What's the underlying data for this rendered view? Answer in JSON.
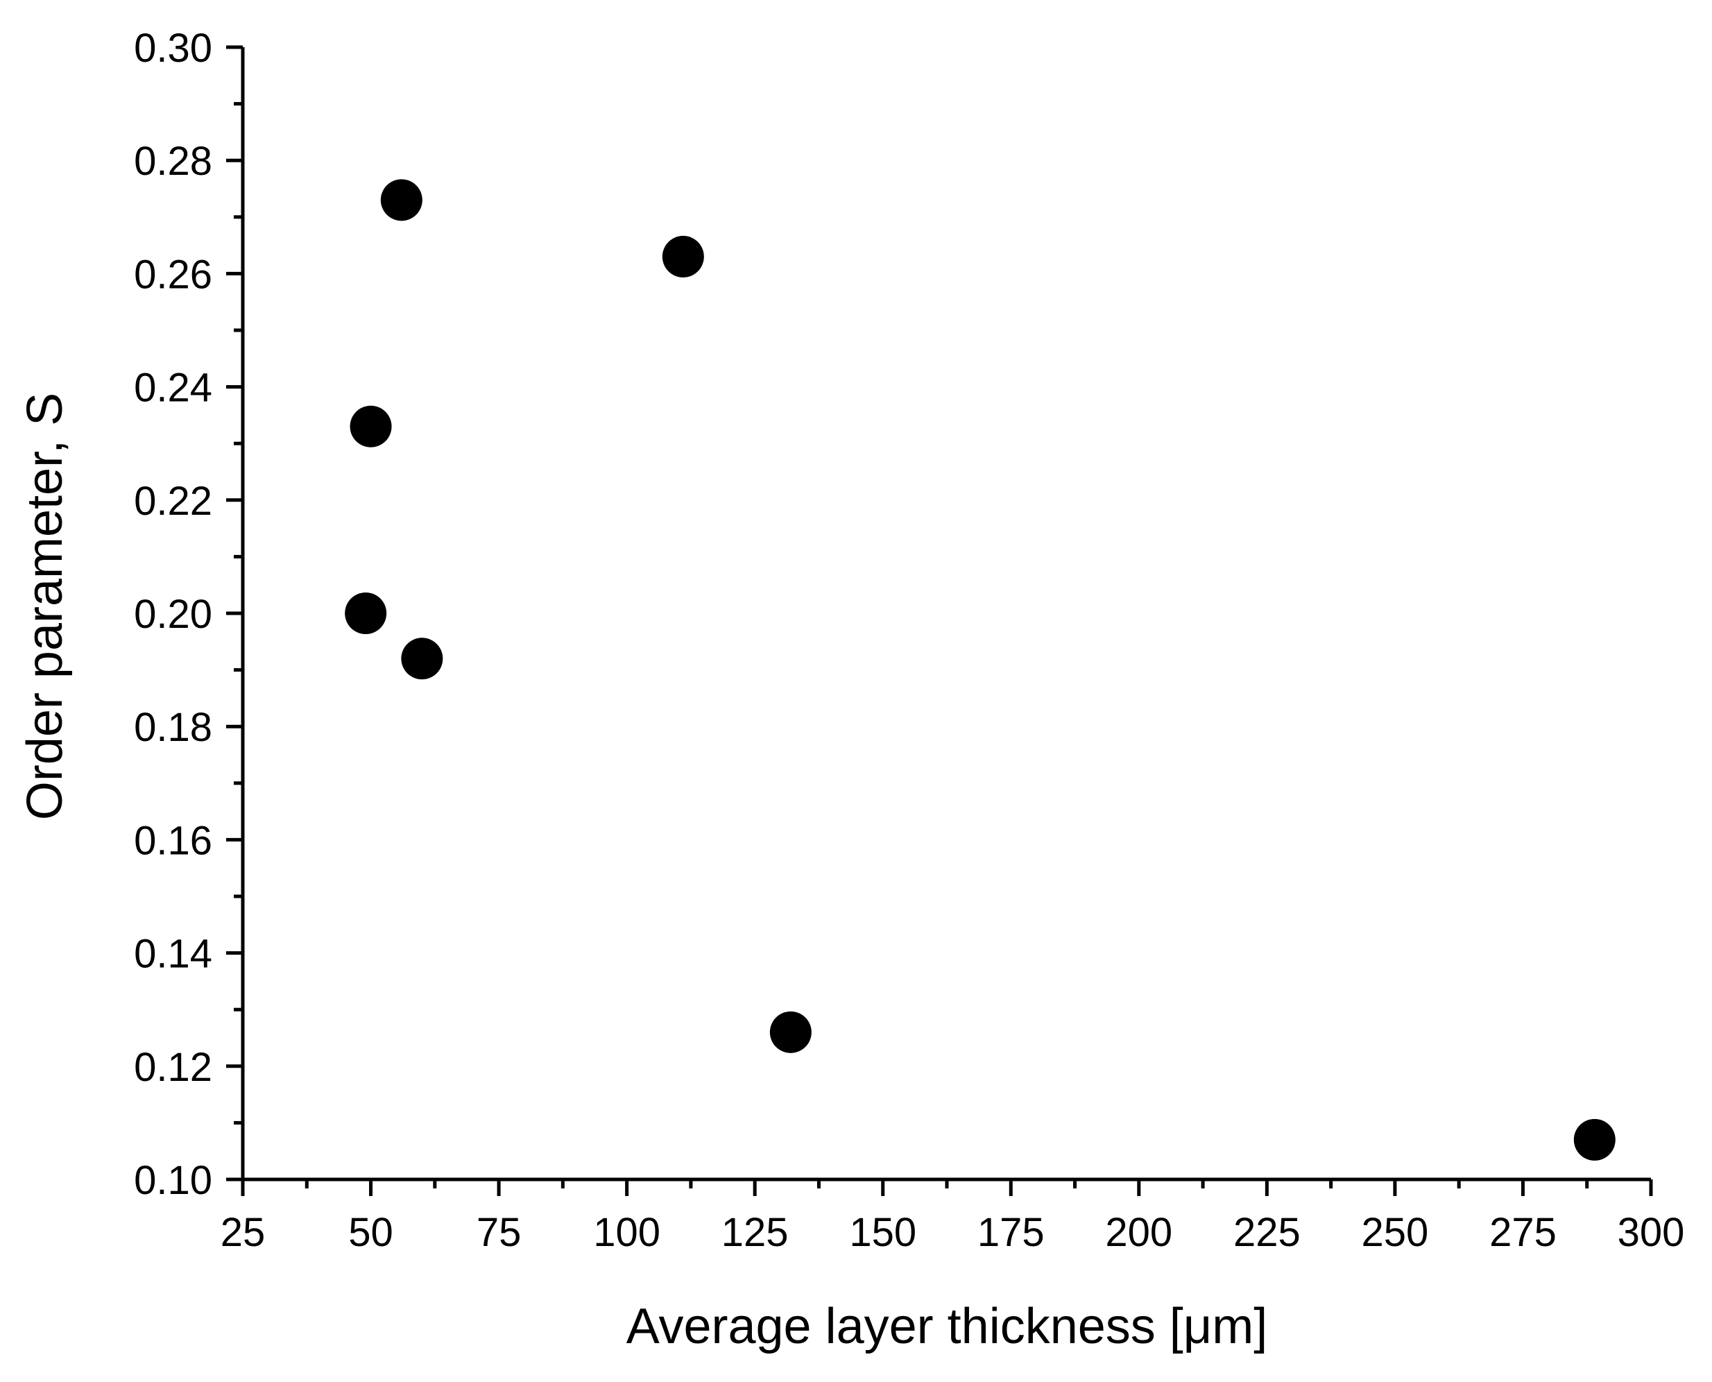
{
  "chart_data": {
    "type": "scatter",
    "xlabel": "Average layer thickness [μm]",
    "ylabel": "Order parameter, S",
    "xlim": [
      25,
      300
    ],
    "ylim": [
      0.1,
      0.3
    ],
    "x_ticks": [
      "25",
      "50",
      "75",
      "100",
      "125",
      "150",
      "175",
      "200",
      "225",
      "250",
      "275",
      "300"
    ],
    "y_ticks": [
      "0.10",
      "0.12",
      "0.14",
      "0.16",
      "0.18",
      "0.20",
      "0.22",
      "0.24",
      "0.26",
      "0.28",
      "0.30"
    ],
    "x_minor_step": 12.5,
    "y_minor_step": 0.01,
    "grid": false,
    "legend": "none",
    "marker_color": "#000000",
    "points": [
      {
        "x": 56,
        "y": 0.273
      },
      {
        "x": 111,
        "y": 0.263
      },
      {
        "x": 50,
        "y": 0.233
      },
      {
        "x": 49,
        "y": 0.2
      },
      {
        "x": 60,
        "y": 0.192
      },
      {
        "x": 132,
        "y": 0.126
      },
      {
        "x": 289,
        "y": 0.107
      }
    ]
  }
}
